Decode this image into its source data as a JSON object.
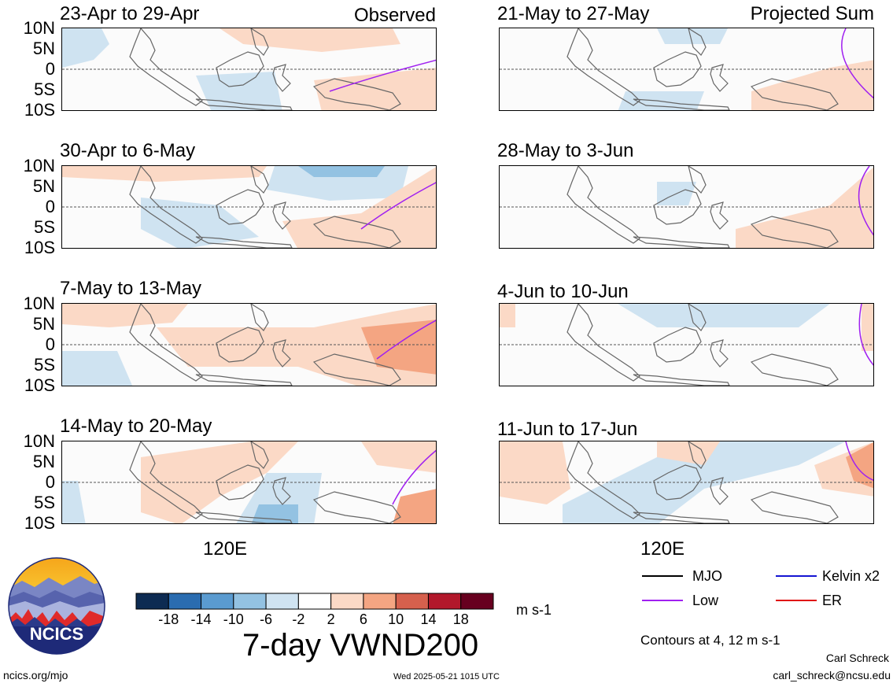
{
  "header": {
    "observed_label": "Observed",
    "projected_label": "Projected Sum"
  },
  "y_ticks": [
    "10N",
    "5N",
    "0",
    "5S",
    "10S"
  ],
  "x_tick_label": "120E",
  "chart_data": {
    "type": "heatmap",
    "title": "7-day VWND200",
    "units": "m s-1",
    "colorbar": {
      "ticks": [
        "-18",
        "-14",
        "-10",
        "-6",
        "-2",
        "2",
        "6",
        "10",
        "14",
        "18"
      ],
      "colors": [
        "#0d2b52",
        "#2a6cb0",
        "#5a9bd0",
        "#93c2e2",
        "#cfe3f1",
        "#ffffff",
        "#fbd9c6",
        "#f4a582",
        "#d6604d",
        "#b2182b",
        "#67001f"
      ]
    },
    "panels": [
      {
        "label": "23-Apr to 29-Apr",
        "group": "Observed"
      },
      {
        "label": "30-Apr to 6-May",
        "group": "Observed"
      },
      {
        "label": "7-May to 13-May",
        "group": "Observed"
      },
      {
        "label": "14-May to 20-May",
        "group": "Observed"
      },
      {
        "label": "21-May to 27-May",
        "group": "Projected Sum"
      },
      {
        "label": "28-May to 3-Jun",
        "group": "Projected Sum"
      },
      {
        "label": "4-Jun to 10-Jun",
        "group": "Projected Sum"
      },
      {
        "label": "11-Jun to 17-Jun",
        "group": "Projected Sum"
      }
    ],
    "legend": [
      {
        "name": "MJO",
        "color": "#000000"
      },
      {
        "name": "Kelvin x2",
        "color": "#1414d2"
      },
      {
        "name": "Low",
        "color": "#a020f0"
      },
      {
        "name": "ER",
        "color": "#e01010"
      }
    ],
    "contour_note": "Contours at 4, 12 m s-1"
  },
  "footer": {
    "logo_text": "NCICS",
    "site": "ncics.org/mjo",
    "timestamp": "Wed 2025-05-21 1015 UTC",
    "author": "Carl Schreck",
    "email": "carl_schreck@ncsu.edu"
  }
}
